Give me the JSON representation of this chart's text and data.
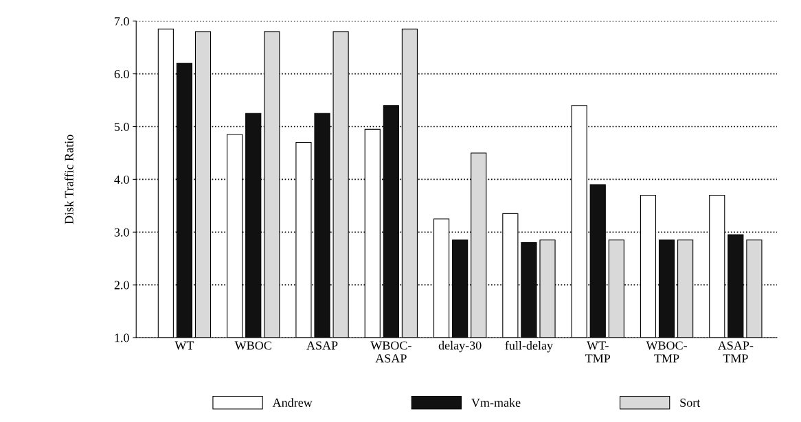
{
  "chart_data": {
    "type": "bar",
    "ylabel": "Disk Traffic Ratio",
    "categories": [
      "WT",
      "WBOC",
      "ASAP",
      "WBOC-\nASAP",
      "delay-30",
      "full-delay",
      "WT-\nTMP",
      "WBOC-\nTMP",
      "ASAP-\nTMP"
    ],
    "series": [
      {
        "name": "Andrew",
        "color": "#ffffff",
        "values": [
          6.85,
          4.85,
          4.7,
          4.95,
          3.25,
          3.35,
          5.4,
          3.7,
          3.7
        ]
      },
      {
        "name": "Vm-make",
        "color": "#111111",
        "values": [
          6.2,
          5.25,
          5.25,
          5.4,
          2.85,
          2.8,
          3.9,
          2.85,
          2.95
        ]
      },
      {
        "name": "Sort",
        "color": "#d9d9d9",
        "values": [
          6.8,
          6.8,
          6.8,
          6.85,
          4.5,
          2.85,
          2.85,
          2.85,
          2.85
        ]
      }
    ],
    "ylim": [
      1,
      7
    ],
    "yticks": [
      {
        "value": 1,
        "label": "1.0"
      },
      {
        "value": 2,
        "label": "2.0"
      },
      {
        "value": 3,
        "label": "3.0"
      },
      {
        "value": 4,
        "label": "4.0"
      },
      {
        "value": 5,
        "label": "5.0"
      },
      {
        "value": 6,
        "label": "6.0"
      },
      {
        "value": 7,
        "label": "7.0"
      }
    ],
    "grid": "y",
    "legend": "bottom"
  }
}
